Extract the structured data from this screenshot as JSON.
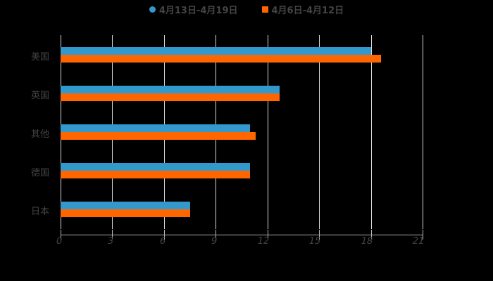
{
  "chart_data": {
    "type": "bar",
    "orientation": "horizontal",
    "title": "",
    "categories": [
      "美国",
      "英国",
      "其他",
      "德国",
      "日本"
    ],
    "series": [
      {
        "name": "4月13日-4月19日",
        "color": "#3399cc",
        "marker": "circle",
        "values": [
          18.0,
          12.7,
          11.0,
          11.0,
          7.5
        ]
      },
      {
        "name": "4月6日-4月12日",
        "color": "#ff6600",
        "marker": "square",
        "values": [
          18.6,
          12.7,
          11.3,
          11.0,
          7.5
        ]
      }
    ],
    "xlabel": "",
    "ylabel": "",
    "xlim": [
      0,
      21
    ],
    "x_ticks": [
      "0",
      "3",
      "6",
      "9",
      "12",
      "15",
      "18",
      "21"
    ],
    "grid": true,
    "legend_position": "top"
  },
  "legend": [
    {
      "label": "4月13日-4月19日",
      "color": "#3399cc"
    },
    {
      "label": "4月6日-4月12日",
      "color": "#ff6600"
    }
  ]
}
